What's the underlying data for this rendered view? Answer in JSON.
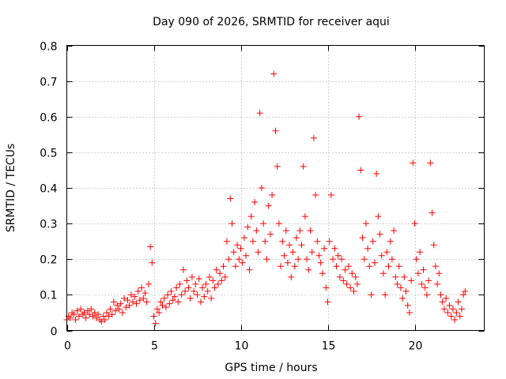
{
  "chart_data": {
    "type": "scatter",
    "title": "Day 090 of 2026, SRMTID for receiver aqui",
    "xlabel": "GPS time / hours",
    "ylabel": "SRMTID / TECUs",
    "xlim": [
      0,
      24
    ],
    "ylim": [
      0,
      0.8
    ],
    "xticks": [
      0,
      5,
      10,
      15,
      20
    ],
    "yticks": [
      0,
      0.1,
      0.2,
      0.3,
      0.4,
      0.5,
      0.6,
      0.7,
      0.8
    ],
    "xtick_labels": [
      "0",
      "5",
      "10",
      "15",
      "20"
    ],
    "ytick_labels": [
      "0",
      "0.1",
      "0.2",
      "0.3",
      "0.4",
      "0.5",
      "0.6",
      "0.7",
      "0.8"
    ],
    "grid": true,
    "marker": "plus",
    "color": "#ff0000",
    "series": [
      {
        "name": "SRMTID",
        "points": [
          [
            0.0,
            0.03
          ],
          [
            0.1,
            0.04
          ],
          [
            0.2,
            0.035
          ],
          [
            0.3,
            0.05
          ],
          [
            0.4,
            0.045
          ],
          [
            0.5,
            0.03
          ],
          [
            0.6,
            0.055
          ],
          [
            0.7,
            0.04
          ],
          [
            0.8,
            0.06
          ],
          [
            0.9,
            0.045
          ],
          [
            1.0,
            0.05
          ],
          [
            1.1,
            0.035
          ],
          [
            1.2,
            0.055
          ],
          [
            1.3,
            0.045
          ],
          [
            1.4,
            0.06
          ],
          [
            1.5,
            0.04
          ],
          [
            1.6,
            0.05
          ],
          [
            1.7,
            0.035
          ],
          [
            1.8,
            0.045
          ],
          [
            1.9,
            0.03
          ],
          [
            2.0,
            0.025
          ],
          [
            2.1,
            0.04
          ],
          [
            2.2,
            0.03
          ],
          [
            2.3,
            0.05
          ],
          [
            2.4,
            0.04
          ],
          [
            2.5,
            0.06
          ],
          [
            2.6,
            0.045
          ],
          [
            2.7,
            0.08
          ],
          [
            2.8,
            0.055
          ],
          [
            2.9,
            0.07
          ],
          [
            3.0,
            0.06
          ],
          [
            3.1,
            0.075
          ],
          [
            3.2,
            0.05
          ],
          [
            3.3,
            0.09
          ],
          [
            3.4,
            0.065
          ],
          [
            3.5,
            0.085
          ],
          [
            3.6,
            0.07
          ],
          [
            3.7,
            0.1
          ],
          [
            3.8,
            0.08
          ],
          [
            3.9,
            0.095
          ],
          [
            4.0,
            0.075
          ],
          [
            4.1,
            0.11
          ],
          [
            4.2,
            0.085
          ],
          [
            4.3,
            0.12
          ],
          [
            4.4,
            0.09
          ],
          [
            4.5,
            0.105
          ],
          [
            4.6,
            0.08
          ],
          [
            4.7,
            0.13
          ],
          [
            4.8,
            0.235
          ],
          [
            4.9,
            0.19
          ],
          [
            5.0,
            0.04
          ],
          [
            5.1,
            0.02
          ],
          [
            5.2,
            0.06
          ],
          [
            5.3,
            0.05
          ],
          [
            5.4,
            0.08
          ],
          [
            5.5,
            0.07
          ],
          [
            5.6,
            0.09
          ],
          [
            5.7,
            0.065
          ],
          [
            5.8,
            0.1
          ],
          [
            5.9,
            0.075
          ],
          [
            6.0,
            0.11
          ],
          [
            6.1,
            0.085
          ],
          [
            6.2,
            0.095
          ],
          [
            6.3,
            0.12
          ],
          [
            6.4,
            0.08
          ],
          [
            6.5,
            0.13
          ],
          [
            6.6,
            0.1
          ],
          [
            6.7,
            0.17
          ],
          [
            6.8,
            0.11
          ],
          [
            6.9,
            0.14
          ],
          [
            7.0,
            0.12
          ],
          [
            7.1,
            0.09
          ],
          [
            7.2,
            0.15
          ],
          [
            7.3,
            0.11
          ],
          [
            7.4,
            0.13
          ],
          [
            7.5,
            0.1
          ],
          [
            7.6,
            0.145
          ],
          [
            7.7,
            0.08
          ],
          [
            7.8,
            0.12
          ],
          [
            7.9,
            0.095
          ],
          [
            8.0,
            0.13
          ],
          [
            8.1,
            0.11
          ],
          [
            8.2,
            0.15
          ],
          [
            8.3,
            0.09
          ],
          [
            8.4,
            0.14
          ],
          [
            8.5,
            0.12
          ],
          [
            8.6,
            0.17
          ],
          [
            8.7,
            0.13
          ],
          [
            8.8,
            0.16
          ],
          [
            8.9,
            0.14
          ],
          [
            9.0,
            0.18
          ],
          [
            9.1,
            0.15
          ],
          [
            9.2,
            0.25
          ],
          [
            9.3,
            0.2
          ],
          [
            9.4,
            0.37
          ],
          [
            9.5,
            0.3
          ],
          [
            9.6,
            0.22
          ],
          [
            9.7,
            0.18
          ],
          [
            9.8,
            0.24
          ],
          [
            9.9,
            0.2
          ],
          [
            10.0,
            0.23
          ],
          [
            10.1,
            0.19
          ],
          [
            10.2,
            0.26
          ],
          [
            10.3,
            0.21
          ],
          [
            10.4,
            0.29
          ],
          [
            10.5,
            0.17
          ],
          [
            10.6,
            0.32
          ],
          [
            10.7,
            0.25
          ],
          [
            10.8,
            0.36
          ],
          [
            10.9,
            0.28
          ],
          [
            11.0,
            0.22
          ],
          [
            11.1,
            0.61
          ],
          [
            11.2,
            0.4
          ],
          [
            11.3,
            0.3
          ],
          [
            11.4,
            0.25
          ],
          [
            11.5,
            0.2
          ],
          [
            11.6,
            0.35
          ],
          [
            11.7,
            0.27
          ],
          [
            11.8,
            0.38
          ],
          [
            11.9,
            0.72
          ],
          [
            12.0,
            0.56
          ],
          [
            12.1,
            0.46
          ],
          [
            12.2,
            0.3
          ],
          [
            12.3,
            0.18
          ],
          [
            12.4,
            0.25
          ],
          [
            12.5,
            0.21
          ],
          [
            12.6,
            0.28
          ],
          [
            12.7,
            0.19
          ],
          [
            12.8,
            0.24
          ],
          [
            12.9,
            0.15
          ],
          [
            13.0,
            0.22
          ],
          [
            13.1,
            0.18
          ],
          [
            13.2,
            0.26
          ],
          [
            13.3,
            0.2
          ],
          [
            13.4,
            0.28
          ],
          [
            13.5,
            0.24
          ],
          [
            13.6,
            0.46
          ],
          [
            13.7,
            0.32
          ],
          [
            13.8,
            0.2
          ],
          [
            13.9,
            0.17
          ],
          [
            14.0,
            0.28
          ],
          [
            14.1,
            0.22
          ],
          [
            14.2,
            0.54
          ],
          [
            14.3,
            0.38
          ],
          [
            14.4,
            0.25
          ],
          [
            14.5,
            0.21
          ],
          [
            14.6,
            0.19
          ],
          [
            14.7,
            0.16
          ],
          [
            14.8,
            0.23
          ],
          [
            14.9,
            0.12
          ],
          [
            15.0,
            0.08
          ],
          [
            15.1,
            0.25
          ],
          [
            15.2,
            0.38
          ],
          [
            15.3,
            0.2
          ],
          [
            15.4,
            0.23
          ],
          [
            15.5,
            0.18
          ],
          [
            15.6,
            0.21
          ],
          [
            15.7,
            0.15
          ],
          [
            15.8,
            0.2
          ],
          [
            15.9,
            0.14
          ],
          [
            16.0,
            0.17
          ],
          [
            16.1,
            0.13
          ],
          [
            16.2,
            0.18
          ],
          [
            16.3,
            0.12
          ],
          [
            16.4,
            0.16
          ],
          [
            16.5,
            0.11
          ],
          [
            16.6,
            0.15
          ],
          [
            16.7,
            0.13
          ],
          [
            16.8,
            0.6
          ],
          [
            16.9,
            0.45
          ],
          [
            17.0,
            0.26
          ],
          [
            17.1,
            0.2
          ],
          [
            17.2,
            0.3
          ],
          [
            17.3,
            0.23
          ],
          [
            17.4,
            0.18
          ],
          [
            17.5,
            0.1
          ],
          [
            17.6,
            0.25
          ],
          [
            17.7,
            0.19
          ],
          [
            17.8,
            0.44
          ],
          [
            17.9,
            0.32
          ],
          [
            18.0,
            0.27
          ],
          [
            18.1,
            0.21
          ],
          [
            18.2,
            0.16
          ],
          [
            18.3,
            0.1
          ],
          [
            18.4,
            0.22
          ],
          [
            18.5,
            0.18
          ],
          [
            18.6,
            0.25
          ],
          [
            18.7,
            0.2
          ],
          [
            18.8,
            0.28
          ],
          [
            18.9,
            0.15
          ],
          [
            19.0,
            0.13
          ],
          [
            19.1,
            0.18
          ],
          [
            19.2,
            0.12
          ],
          [
            19.3,
            0.09
          ],
          [
            19.4,
            0.15
          ],
          [
            19.5,
            0.11
          ],
          [
            19.6,
            0.07
          ],
          [
            19.7,
            0.05
          ],
          [
            19.8,
            0.14
          ],
          [
            19.9,
            0.47
          ],
          [
            20.0,
            0.3
          ],
          [
            20.1,
            0.2
          ],
          [
            20.2,
            0.16
          ],
          [
            20.3,
            0.22
          ],
          [
            20.4,
            0.13
          ],
          [
            20.5,
            0.17
          ],
          [
            20.6,
            0.12
          ],
          [
            20.7,
            0.1
          ],
          [
            20.8,
            0.14
          ],
          [
            20.9,
            0.47
          ],
          [
            21.0,
            0.33
          ],
          [
            21.1,
            0.24
          ],
          [
            21.2,
            0.18
          ],
          [
            21.3,
            0.13
          ],
          [
            21.4,
            0.16
          ],
          [
            21.5,
            0.1
          ],
          [
            21.6,
            0.08
          ],
          [
            21.7,
            0.06
          ],
          [
            21.8,
            0.09
          ],
          [
            21.9,
            0.05
          ],
          [
            22.0,
            0.07
          ],
          [
            22.1,
            0.04
          ],
          [
            22.2,
            0.06
          ],
          [
            22.3,
            0.03
          ],
          [
            22.4,
            0.05
          ],
          [
            22.5,
            0.08
          ],
          [
            22.6,
            0.04
          ],
          [
            22.7,
            0.06
          ],
          [
            22.8,
            0.1
          ],
          [
            22.9,
            0.11
          ]
        ]
      }
    ]
  }
}
